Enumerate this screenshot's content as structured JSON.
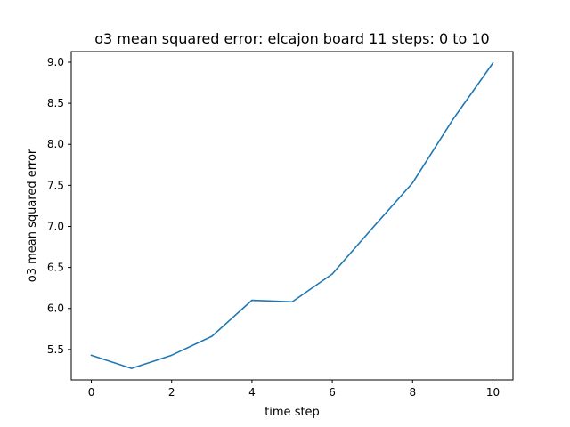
{
  "chart_data": {
    "type": "line",
    "title": "o3 mean squared error: elcajon board 11 steps: 0 to 10",
    "xlabel": "time step",
    "ylabel": "o3 mean squared error",
    "xlim": [
      -0.5,
      10.5
    ],
    "ylim": [
      5.13,
      9.13
    ],
    "xticks": [
      0,
      2,
      4,
      6,
      8,
      10
    ],
    "xtick_labels": [
      "0",
      "2",
      "4",
      "6",
      "8",
      "10"
    ],
    "yticks": [
      5.5,
      6.0,
      6.5,
      7.0,
      7.5,
      8.0,
      8.5,
      9.0
    ],
    "ytick_labels": [
      "5.5",
      "6.0",
      "6.5",
      "7.0",
      "7.5",
      "8.0",
      "8.5",
      "9.0"
    ],
    "grid": false,
    "series": [
      {
        "color": "#1f77b4",
        "x": [
          0,
          1,
          2,
          3,
          4,
          5,
          6,
          7,
          8,
          9,
          10
        ],
        "y": [
          5.43,
          5.27,
          5.43,
          5.66,
          6.1,
          6.08,
          6.42,
          6.98,
          7.53,
          8.3,
          8.99
        ]
      }
    ]
  }
}
